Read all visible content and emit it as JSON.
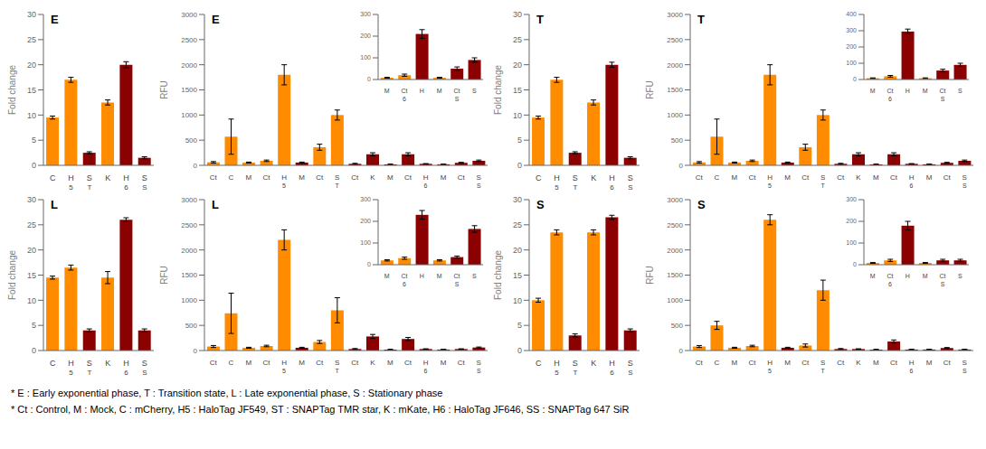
{
  "chart_data": [
    {
      "type": "bar",
      "title": "E",
      "ylabel": "Fold change",
      "categories": [
        "C",
        "H",
        "S",
        "K",
        "H",
        "S"
      ],
      "sub_labels": [
        null,
        "5",
        "T",
        null,
        "6",
        "S"
      ],
      "values": [
        9.5,
        17.0,
        2.5,
        12.5,
        20.0,
        1.5
      ],
      "errors": [
        0.3,
        0.5,
        0.2,
        0.5,
        0.6,
        0.2
      ],
      "colors": [
        "#FF8C00",
        "#FF8C00",
        "#8B0000",
        "#FF8C00",
        "#8B0000",
        "#8B0000"
      ],
      "ylim": [
        0,
        30
      ],
      "yticks": [
        0,
        5,
        10,
        15,
        20,
        25,
        30
      ]
    },
    {
      "type": "bar",
      "title": "E",
      "ylabel": "RFU",
      "categories": [
        "Ct",
        "C",
        "M",
        "Ct",
        "H",
        "M",
        "Ct",
        "S",
        "Ct",
        "K",
        "M",
        "Ct",
        "H",
        "M",
        "Ct",
        "S"
      ],
      "sub_labels": [
        null,
        null,
        null,
        null,
        "5",
        null,
        null,
        "T",
        null,
        null,
        null,
        null,
        "6",
        null,
        null,
        "S"
      ],
      "values": [
        60,
        570,
        55,
        90,
        1800,
        55,
        360,
        1000,
        30,
        220,
        20,
        220,
        30,
        20,
        50,
        90
      ],
      "errors": [
        15,
        350,
        10,
        15,
        200,
        10,
        60,
        100,
        10,
        30,
        5,
        30,
        5,
        5,
        10,
        15
      ],
      "colors": [
        "#FF8C00",
        "#FF8C00",
        "#FF8C00",
        "#FF8C00",
        "#FF8C00",
        "#8B0000",
        "#FF8C00",
        "#FF8C00",
        "#8B0000",
        "#8B0000",
        "#8B0000",
        "#8B0000",
        "#8B0000",
        "#8B0000",
        "#8B0000",
        "#8B0000"
      ],
      "ylim": [
        0,
        3000
      ],
      "yticks": [
        0,
        500,
        1000,
        1500,
        2000,
        2500,
        3000
      ]
    },
    {
      "type": "bar",
      "categories": [
        "M",
        "Ct",
        "H",
        "M",
        "Ct",
        "S"
      ],
      "sub_labels": [
        null,
        "6",
        null,
        null,
        "S",
        null
      ],
      "values": [
        8,
        20,
        210,
        8,
        50,
        90
      ],
      "errors": [
        2,
        5,
        20,
        2,
        8,
        10
      ],
      "colors": [
        "#FF8C00",
        "#FF8C00",
        "#8B0000",
        "#FF8C00",
        "#8B0000",
        "#8B0000"
      ],
      "ylim": [
        0,
        300
      ],
      "yticks": [
        0,
        100,
        200,
        300
      ]
    },
    {
      "type": "bar",
      "title": "T",
      "ylabel": "Fold change",
      "categories": [
        "C",
        "H",
        "S",
        "K",
        "H",
        "S"
      ],
      "sub_labels": [
        null,
        "5",
        "T",
        null,
        "6",
        "S"
      ],
      "values": [
        9.5,
        17.0,
        2.5,
        12.5,
        20.0,
        1.5
      ],
      "errors": [
        0.3,
        0.5,
        0.2,
        0.5,
        0.5,
        0.2
      ],
      "colors": [
        "#FF8C00",
        "#FF8C00",
        "#8B0000",
        "#FF8C00",
        "#8B0000",
        "#8B0000"
      ],
      "ylim": [
        0,
        30
      ],
      "yticks": [
        0,
        5,
        10,
        15,
        20,
        25,
        30
      ]
    },
    {
      "type": "bar",
      "title": "T",
      "ylabel": "RFU",
      "categories": [
        "Ct",
        "C",
        "M",
        "Ct",
        "H",
        "M",
        "Ct",
        "S",
        "Ct",
        "K",
        "M",
        "Ct",
        "H",
        "M",
        "Ct",
        "S"
      ],
      "sub_labels": [
        null,
        null,
        null,
        null,
        "5",
        null,
        null,
        "T",
        null,
        null,
        null,
        null,
        "6",
        null,
        null,
        "S"
      ],
      "values": [
        60,
        570,
        55,
        90,
        1800,
        55,
        360,
        1000,
        30,
        220,
        20,
        220,
        30,
        20,
        50,
        90
      ],
      "errors": [
        15,
        350,
        10,
        15,
        200,
        10,
        60,
        100,
        10,
        30,
        5,
        30,
        5,
        5,
        10,
        15
      ],
      "colors": [
        "#FF8C00",
        "#FF8C00",
        "#FF8C00",
        "#FF8C00",
        "#FF8C00",
        "#8B0000",
        "#FF8C00",
        "#FF8C00",
        "#8B0000",
        "#8B0000",
        "#8B0000",
        "#8B0000",
        "#8B0000",
        "#8B0000",
        "#8B0000",
        "#8B0000"
      ],
      "ylim": [
        0,
        3000
      ],
      "yticks": [
        0,
        500,
        1000,
        1500,
        2000,
        2500,
        3000
      ]
    },
    {
      "type": "bar",
      "categories": [
        "M",
        "Ct",
        "H",
        "M",
        "Ct",
        "S"
      ],
      "sub_labels": [
        null,
        "6",
        null,
        null,
        "S",
        null
      ],
      "values": [
        8,
        20,
        295,
        8,
        55,
        90
      ],
      "errors": [
        2,
        5,
        15,
        2,
        8,
        10
      ],
      "colors": [
        "#FF8C00",
        "#FF8C00",
        "#8B0000",
        "#FF8C00",
        "#8B0000",
        "#8B0000"
      ],
      "ylim": [
        0,
        400
      ],
      "yticks": [
        0,
        100,
        200,
        300,
        400
      ]
    },
    {
      "type": "bar",
      "title": "L",
      "ylabel": "Fold change",
      "categories": [
        "C",
        "H",
        "S",
        "K",
        "H",
        "S"
      ],
      "sub_labels": [
        null,
        "5",
        "T",
        null,
        "6",
        "S"
      ],
      "values": [
        14.5,
        16.5,
        4.0,
        14.5,
        26.0,
        4.0
      ],
      "errors": [
        0.3,
        0.5,
        0.3,
        1.2,
        0.4,
        0.3
      ],
      "colors": [
        "#FF8C00",
        "#FF8C00",
        "#8B0000",
        "#FF8C00",
        "#8B0000",
        "#8B0000"
      ],
      "ylim": [
        0,
        30
      ],
      "yticks": [
        0,
        5,
        10,
        15,
        20,
        25,
        30
      ]
    },
    {
      "type": "bar",
      "title": "L",
      "ylabel": "RFU",
      "categories": [
        "Ct",
        "C",
        "M",
        "Ct",
        "H",
        "M",
        "Ct",
        "S",
        "Ct",
        "K",
        "M",
        "Ct",
        "H",
        "M",
        "Ct",
        "S"
      ],
      "sub_labels": [
        null,
        null,
        null,
        null,
        "5",
        null,
        null,
        "T",
        null,
        null,
        null,
        null,
        "6",
        null,
        null,
        "S"
      ],
      "values": [
        80,
        740,
        55,
        90,
        2200,
        55,
        170,
        800,
        30,
        280,
        20,
        230,
        30,
        20,
        30,
        60
      ],
      "errors": [
        20,
        400,
        10,
        15,
        200,
        10,
        30,
        250,
        10,
        40,
        5,
        30,
        5,
        5,
        5,
        10
      ],
      "colors": [
        "#FF8C00",
        "#FF8C00",
        "#FF8C00",
        "#FF8C00",
        "#FF8C00",
        "#8B0000",
        "#FF8C00",
        "#FF8C00",
        "#8B0000",
        "#8B0000",
        "#8B0000",
        "#8B0000",
        "#8B0000",
        "#8B0000",
        "#8B0000",
        "#8B0000"
      ],
      "ylim": [
        0,
        3000
      ],
      "yticks": [
        0,
        500,
        1000,
        1500,
        2000,
        2500,
        3000
      ]
    },
    {
      "type": "bar",
      "categories": [
        "M",
        "Ct",
        "H",
        "M",
        "Ct",
        "S"
      ],
      "sub_labels": [
        null,
        "6",
        null,
        null,
        "S",
        null
      ],
      "values": [
        20,
        30,
        230,
        20,
        35,
        165
      ],
      "errors": [
        3,
        5,
        20,
        3,
        5,
        15
      ],
      "colors": [
        "#FF8C00",
        "#FF8C00",
        "#8B0000",
        "#FF8C00",
        "#8B0000",
        "#8B0000"
      ],
      "ylim": [
        0,
        300
      ],
      "yticks": [
        0,
        100,
        200,
        300
      ]
    },
    {
      "type": "bar",
      "title": "S",
      "ylabel": "Fold change",
      "categories": [
        "C",
        "H",
        "S",
        "K",
        "H",
        "S"
      ],
      "sub_labels": [
        null,
        "5",
        "T",
        null,
        "6",
        "S"
      ],
      "values": [
        10.0,
        23.5,
        3.0,
        23.5,
        26.5,
        4.0
      ],
      "errors": [
        0.4,
        0.5,
        0.3,
        0.5,
        0.4,
        0.3
      ],
      "colors": [
        "#FF8C00",
        "#FF8C00",
        "#8B0000",
        "#FF8C00",
        "#8B0000",
        "#8B0000"
      ],
      "ylim": [
        0,
        30
      ],
      "yticks": [
        0,
        5,
        10,
        15,
        20,
        25,
        30
      ]
    },
    {
      "type": "bar",
      "title": "S",
      "ylabel": "RFU",
      "categories": [
        "Ct",
        "C",
        "M",
        "Ct",
        "H",
        "M",
        "Ct",
        "S",
        "Ct",
        "K",
        "M",
        "Ct",
        "H",
        "M",
        "Ct",
        "S"
      ],
      "sub_labels": [
        null,
        null,
        null,
        null,
        "5",
        null,
        null,
        "T",
        null,
        null,
        null,
        null,
        "6",
        null,
        null,
        "S"
      ],
      "values": [
        80,
        500,
        55,
        90,
        2600,
        55,
        100,
        1200,
        30,
        30,
        20,
        180,
        20,
        20,
        50,
        20
      ],
      "errors": [
        20,
        80,
        10,
        15,
        100,
        10,
        30,
        200,
        10,
        5,
        5,
        30,
        5,
        5,
        10,
        5
      ],
      "colors": [
        "#FF8C00",
        "#FF8C00",
        "#FF8C00",
        "#FF8C00",
        "#FF8C00",
        "#8B0000",
        "#FF8C00",
        "#FF8C00",
        "#8B0000",
        "#8B0000",
        "#8B0000",
        "#8B0000",
        "#8B0000",
        "#8B0000",
        "#8B0000",
        "#8B0000"
      ],
      "ylim": [
        0,
        3000
      ],
      "yticks": [
        0,
        500,
        1000,
        1500,
        2000,
        2500,
        3000
      ]
    },
    {
      "type": "bar",
      "categories": [
        "M",
        "Ct",
        "H",
        "M",
        "Ct",
        "S"
      ],
      "sub_labels": [
        null,
        "6",
        null,
        null,
        "S",
        null
      ],
      "values": [
        8,
        20,
        180,
        8,
        20,
        20
      ],
      "errors": [
        2,
        5,
        20,
        2,
        5,
        5
      ],
      "colors": [
        "#FF8C00",
        "#FF8C00",
        "#8B0000",
        "#FF8C00",
        "#8B0000",
        "#8B0000"
      ],
      "ylim": [
        0,
        300
      ],
      "yticks": [
        0,
        100,
        200,
        300
      ]
    }
  ],
  "footnotes": [
    "* E : Early exponential phase, T : Transition state, L : Late exponential phase, S : Stationary phase",
    "* Ct : Control, M : Mock, C : mCherry, H5 : HaloTag JF549, ST : SNAPTag TMR star, K : mKate, H6 : HaloTag JF646, SS : SNAPTag 647 SiR"
  ]
}
